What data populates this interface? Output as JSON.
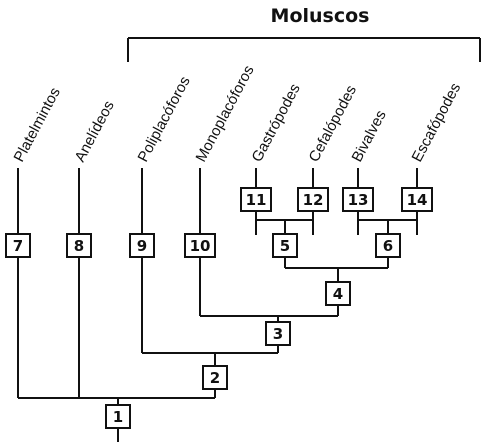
{
  "group_label": "Moluscos",
  "taxa": [
    "Platelmintos",
    "Anelídeos",
    "Poliplacóforos",
    "Monoplacóforos",
    "Gastrópodes",
    "Cefalópodes",
    "Bivalves",
    "Escafópodes"
  ],
  "nodes": [
    "1",
    "2",
    "3",
    "4",
    "5",
    "6",
    "7",
    "8",
    "9",
    "10",
    "11",
    "12",
    "13",
    "14"
  ]
}
